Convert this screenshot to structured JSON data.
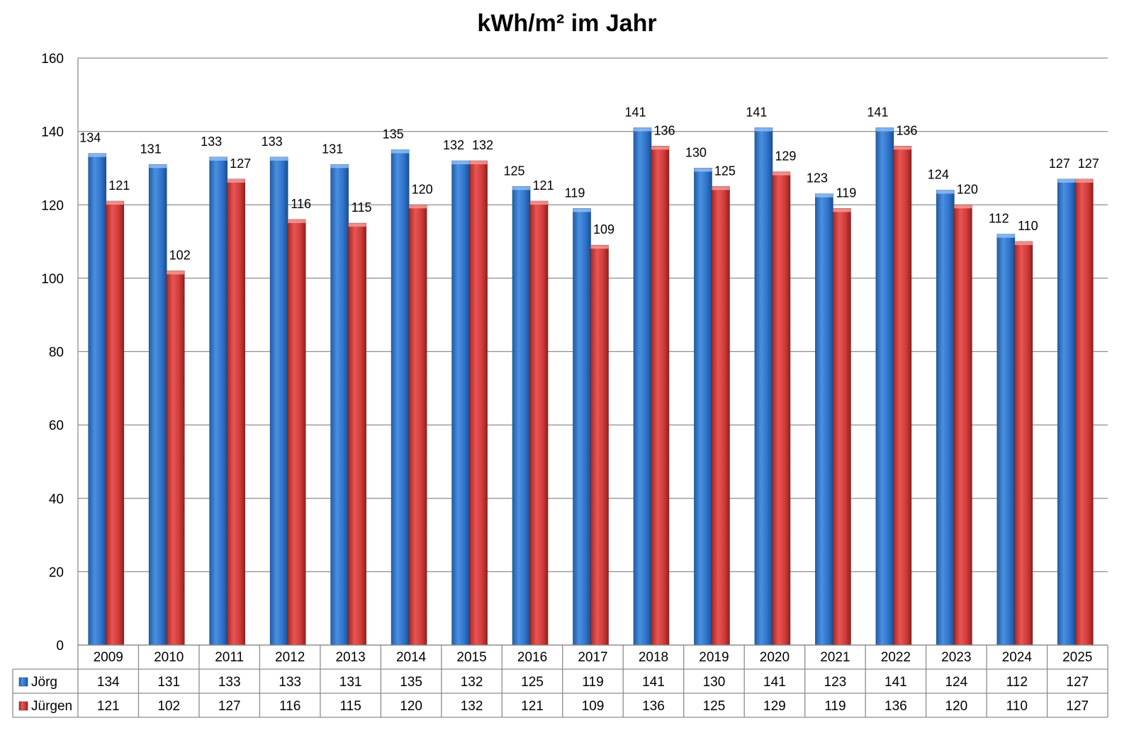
{
  "chart_data": {
    "type": "bar",
    "title": "kWh/m² im Jahr",
    "xlabel": "",
    "ylabel": "",
    "ylim": [
      0,
      160
    ],
    "yticks": [
      0,
      20,
      40,
      60,
      80,
      100,
      120,
      140,
      160
    ],
    "grid": true,
    "legend": "data-table-bottom",
    "categories": [
      "2009",
      "2010",
      "2011",
      "2012",
      "2013",
      "2014",
      "2015",
      "2016",
      "2017",
      "2018",
      "2019",
      "2020",
      "2021",
      "2022",
      "2023",
      "2024",
      "2025"
    ],
    "series": [
      {
        "name": "Jörg",
        "color": "#3a7fd5",
        "values": [
          134,
          131,
          133,
          133,
          131,
          135,
          132,
          125,
          119,
          141,
          130,
          141,
          123,
          141,
          124,
          112,
          127
        ]
      },
      {
        "name": "Jürgen",
        "color": "#d9403d",
        "values": [
          121,
          102,
          127,
          116,
          115,
          120,
          132,
          121,
          109,
          136,
          125,
          129,
          119,
          136,
          120,
          110,
          127
        ]
      }
    ]
  }
}
